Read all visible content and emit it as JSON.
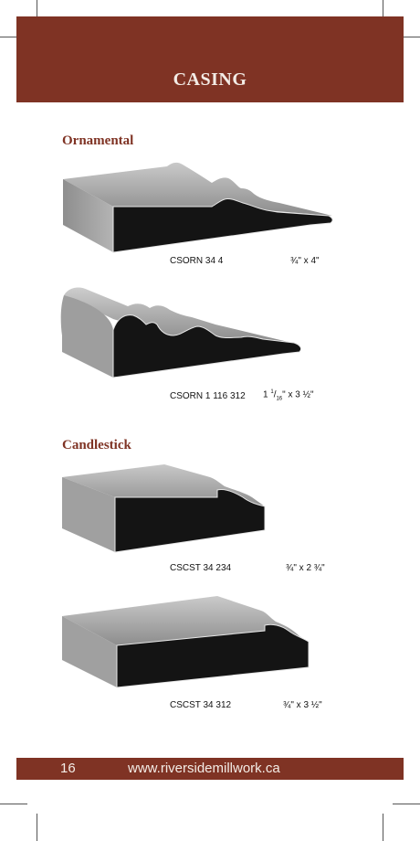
{
  "header": {
    "title": "CASING"
  },
  "sections": [
    {
      "title": "Ornamental"
    },
    {
      "title": "Candlestick"
    }
  ],
  "products": [
    {
      "code": "CSORN 34 4",
      "dimension": "¾\" x 4\""
    },
    {
      "code": "CSORN 1 116 312",
      "dim_whole": "1",
      "dim_num": "1",
      "dim_den": "16",
      "dim_rest": "\" x 3 ½\""
    },
    {
      "code": "CSCST 34 234",
      "dimension": "¾\" x 2 ¾\""
    },
    {
      "code": "CSCST 34 312",
      "dimension": "¾\" x 3 ½\""
    }
  ],
  "footer": {
    "page_number": "16",
    "url": "www.riversidemillwork.ca"
  },
  "colors": {
    "brand": "#7f3324",
    "profile_face": "#141414",
    "profile_top": "#9a9a9a"
  }
}
